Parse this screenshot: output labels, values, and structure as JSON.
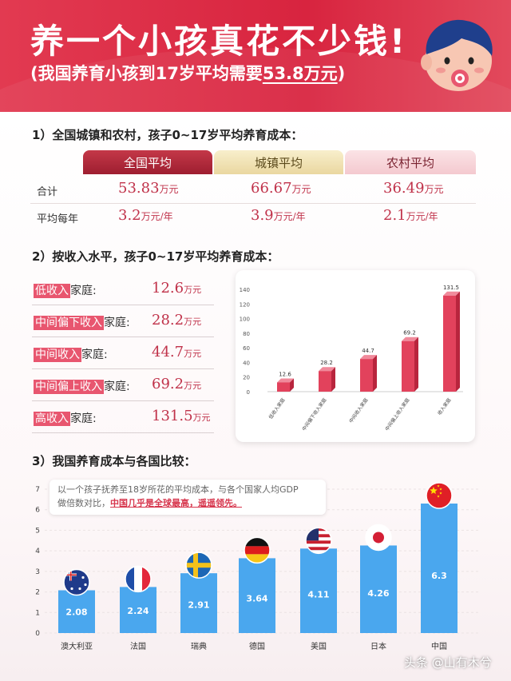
{
  "header": {
    "title": "养一个小孩真花不少钱!",
    "subtitle_prefix": "(我国养育小孩到17岁平均需要",
    "subtitle_highlight": "53.8万元",
    "subtitle_suffix": ")"
  },
  "section1": {
    "title": "1）全国城镇和农村，孩子0~17岁平均养育成本：",
    "columns": [
      "全国平均",
      "城镇平均",
      "农村平均"
    ],
    "rows": [
      {
        "label": "合计",
        "values": [
          "53.83",
          "66.67",
          "36.49"
        ],
        "unit": "万元"
      },
      {
        "label": "平均每年",
        "values": [
          "3.2",
          "3.9",
          "2.1"
        ],
        "unit": "万元/年"
      }
    ]
  },
  "section2": {
    "title": "2）按收入水平，孩子0~17岁平均养育成本：",
    "suffix": "家庭:",
    "unit": "万元",
    "items": [
      {
        "highlight": "低收入",
        "value": "12.6"
      },
      {
        "highlight": "中间偏下收入",
        "value": "28.2"
      },
      {
        "highlight": "中间收入",
        "value": "44.7"
      },
      {
        "highlight": "中间偏上收入",
        "value": "69.2"
      },
      {
        "highlight": "高收入",
        "value": "131.5"
      }
    ]
  },
  "section3": {
    "title": "3）我国养育成本与各国比较：",
    "note_line1": "以一个孩子抚养至18岁所花的平均成本，与各个国家人均GDP",
    "note_line2_prefix": "做倍数对比，",
    "note_line2_strong": "中国几乎是全球最高，遥遥领先。"
  },
  "chart_data": [
    {
      "type": "bar",
      "categories": [
        "低收入家庭",
        "中间偏下收入家庭",
        "中间收入家庭",
        "中间偏上收入家庭",
        "收入家庭"
      ],
      "values": [
        12.6,
        28.2,
        44.7,
        69.2,
        131.5
      ],
      "yticks": [
        0,
        20,
        40,
        60,
        80,
        100,
        120,
        140
      ],
      "ylim": [
        0,
        140
      ],
      "title": "",
      "xlabel": "",
      "ylabel": "",
      "bar_color": "#e2425c"
    },
    {
      "type": "bar",
      "categories": [
        "澳大利亚",
        "法国",
        "瑞典",
        "德国",
        "美国",
        "日本",
        "中国"
      ],
      "values": [
        2.08,
        2.24,
        2.91,
        3.64,
        4.11,
        4.26,
        6.3
      ],
      "value_labels": [
        "2.08",
        "2.24",
        "2.91",
        "3.64",
        "4.11",
        "4.26",
        "6.3"
      ],
      "flags": [
        "australia-flag",
        "france-flag",
        "sweden-flag",
        "germany-flag",
        "usa-flag",
        "japan-flag",
        "china-flag"
      ],
      "yticks": [
        0,
        1,
        2,
        3,
        4,
        5,
        6,
        7
      ],
      "ylim": [
        0,
        7
      ],
      "title": "",
      "xlabel": "",
      "ylabel": "",
      "bar_color": "#4aa7ee"
    }
  ],
  "watermark": "头条 @山有木兮"
}
